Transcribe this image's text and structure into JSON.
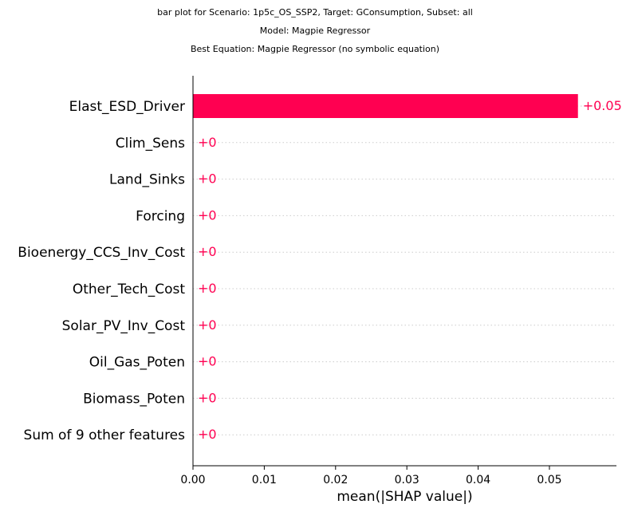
{
  "chart_data": {
    "type": "bar",
    "orientation": "horizontal",
    "title_lines": [
      "bar plot for Scenario: 1p5c_OS_SSP2, Target: GConsumption, Subset: all",
      "Model: Magpie Regressor",
      "Best Equation: Magpie Regressor (no symbolic equation)"
    ],
    "categories": [
      "Elast_ESD_Driver",
      "Clim_Sens",
      "Land_Sinks",
      "Forcing",
      "Bioenergy_CCS_Inv_Cost",
      "Other_Tech_Cost",
      "Solar_PV_Inv_Cost",
      "Oil_Gas_Poten",
      "Biomass_Poten",
      "Sum of 9 other features"
    ],
    "values": [
      0.054,
      0,
      0,
      0,
      0,
      0,
      0,
      0,
      0,
      0
    ],
    "value_labels": [
      "+0.05",
      "+0",
      "+0",
      "+0",
      "+0",
      "+0",
      "+0",
      "+0",
      "+0",
      "+0"
    ],
    "xlabel": "mean(|SHAP value|)",
    "ylabel": "",
    "xlim": [
      0,
      0.0594
    ],
    "xticks": [
      0,
      0.01,
      0.02,
      0.03,
      0.04,
      0.05
    ],
    "xtick_labels": [
      "0.00",
      "0.01",
      "0.02",
      "0.03",
      "0.04",
      "0.05"
    ],
    "grid": "dotted horizontal guide lines per row",
    "colors": {
      "bar": "#ff0051",
      "value_text": "#ff0051",
      "guide_line": "#cccccc",
      "axis": "#000000"
    }
  }
}
